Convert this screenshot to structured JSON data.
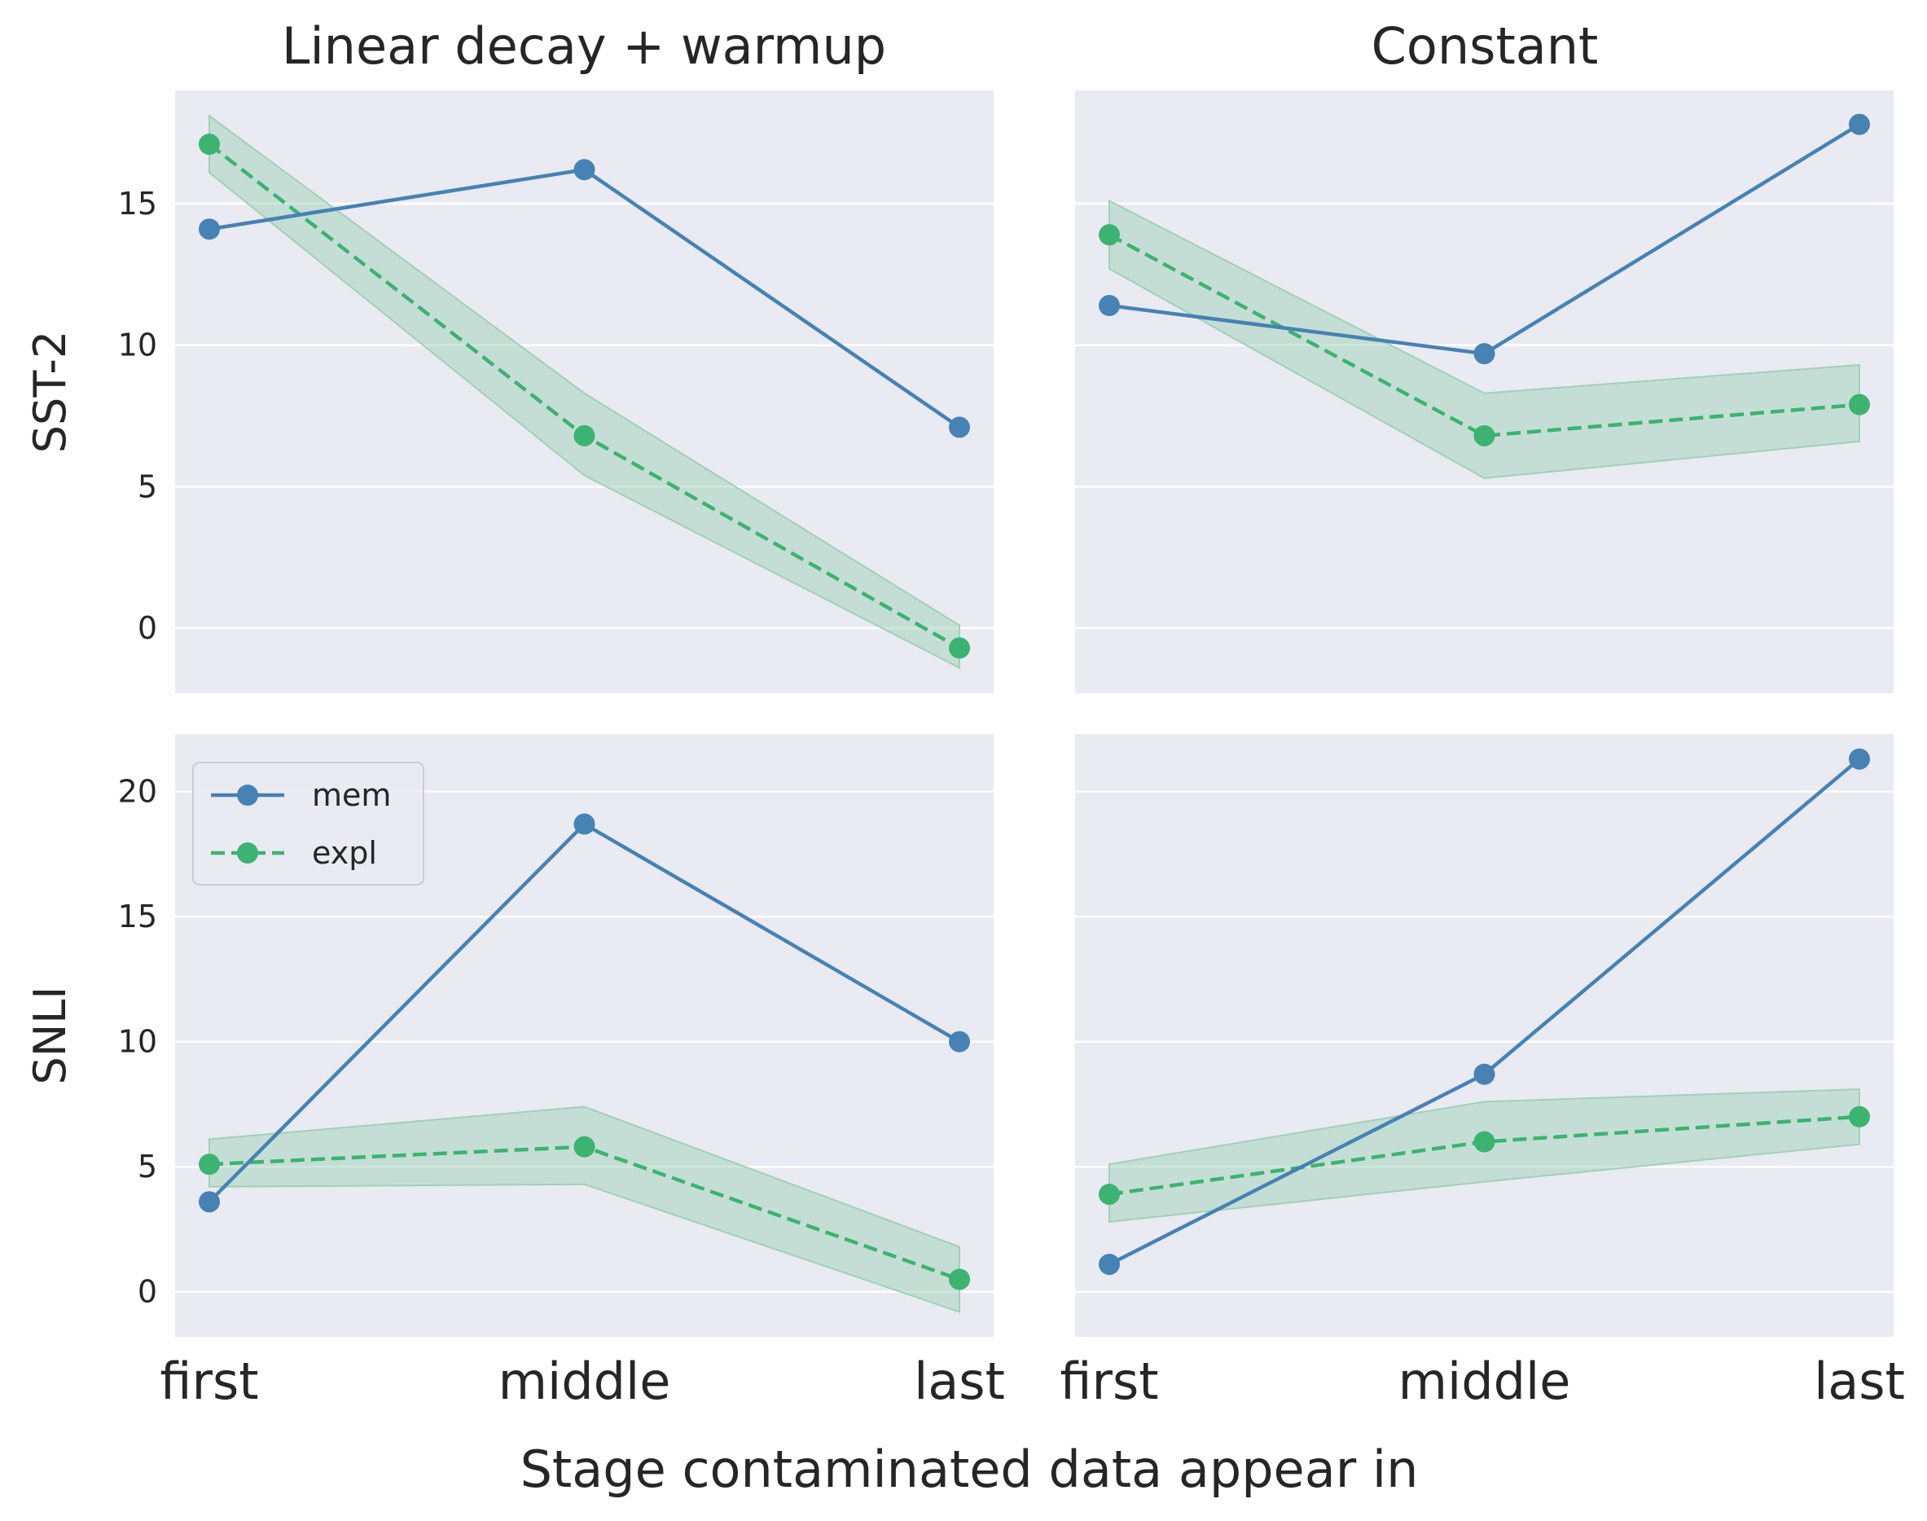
{
  "figure": {
    "xlabel": "Stage contaminated data appear in",
    "column_titles": [
      "Linear decay + warmup",
      "Constant"
    ],
    "row_labels": [
      "SST-2",
      "SNLI"
    ]
  },
  "colors": {
    "mem": "#4682b4",
    "expl": "#3cb371",
    "band": "#9fd1b7",
    "panel_bg": "#eaeaf2",
    "grid": "#ffffff"
  },
  "legend": {
    "placement": "upper-left of bottom-left panel",
    "items": [
      {
        "label": "mem",
        "style": "solid"
      },
      {
        "label": "expl",
        "style": "dashed"
      }
    ]
  },
  "chart_data": [
    {
      "type": "line",
      "panel": "SST-2 / Linear decay + warmup",
      "title": "Linear decay + warmup",
      "ylabel": "SST-2",
      "categories": [
        "first",
        "middle",
        "last"
      ],
      "ylim": [
        -2.3,
        19.0
      ],
      "yticks": [
        0,
        5,
        10,
        15
      ],
      "grid": true,
      "series": [
        {
          "name": "mem",
          "values": [
            14.1,
            16.2,
            7.1
          ]
        },
        {
          "name": "expl",
          "values": [
            17.1,
            6.8,
            -0.7
          ],
          "band_low": [
            16.1,
            5.4,
            -1.4
          ],
          "band_high": [
            18.1,
            8.3,
            0.1
          ]
        }
      ]
    },
    {
      "type": "line",
      "panel": "SST-2 / Constant",
      "title": "Constant",
      "ylabel": "SST-2",
      "categories": [
        "first",
        "middle",
        "last"
      ],
      "ylim": [
        -2.3,
        19.0
      ],
      "yticks": [
        0,
        5,
        10,
        15
      ],
      "grid": true,
      "series": [
        {
          "name": "mem",
          "values": [
            11.4,
            9.7,
            17.8
          ]
        },
        {
          "name": "expl",
          "values": [
            13.9,
            6.8,
            7.9
          ],
          "band_low": [
            12.7,
            5.3,
            6.6
          ],
          "band_high": [
            15.1,
            8.3,
            9.3
          ]
        }
      ]
    },
    {
      "type": "line",
      "panel": "SNLI / Linear decay + warmup",
      "title": "Linear decay + warmup",
      "ylabel": "SNLI",
      "categories": [
        "first",
        "middle",
        "last"
      ],
      "ylim": [
        -1.8,
        22.3
      ],
      "yticks": [
        0,
        5,
        10,
        15,
        20
      ],
      "grid": true,
      "series": [
        {
          "name": "mem",
          "values": [
            3.6,
            18.7,
            10.0
          ]
        },
        {
          "name": "expl",
          "values": [
            5.1,
            5.8,
            0.5
          ],
          "band_low": [
            4.2,
            4.3,
            -0.8
          ],
          "band_high": [
            6.1,
            7.4,
            1.8
          ]
        }
      ]
    },
    {
      "type": "line",
      "panel": "SNLI / Constant",
      "title": "Constant",
      "ylabel": "SNLI",
      "categories": [
        "first",
        "middle",
        "last"
      ],
      "ylim": [
        -1.8,
        22.3
      ],
      "yticks": [
        0,
        5,
        10,
        15,
        20
      ],
      "grid": true,
      "series": [
        {
          "name": "mem",
          "values": [
            1.1,
            8.7,
            21.3
          ]
        },
        {
          "name": "expl",
          "values": [
            3.9,
            6.0,
            7.0
          ],
          "band_low": [
            2.8,
            4.4,
            5.9
          ],
          "band_high": [
            5.1,
            7.6,
            8.1
          ]
        }
      ]
    }
  ]
}
